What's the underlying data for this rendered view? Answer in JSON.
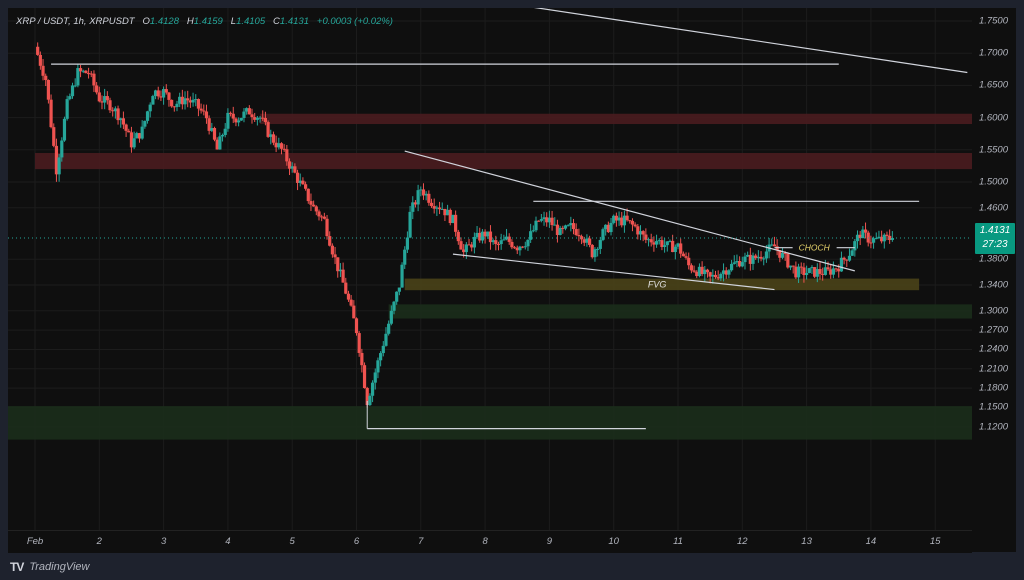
{
  "header": {
    "symbol": "XRP / USDT, 1h, XRPUSDT",
    "open_label": "O",
    "open": "1.4128",
    "high_label": "H",
    "high": "1.4159",
    "low_label": "L",
    "low": "1.4105",
    "close_label": "C",
    "close": "1.4131",
    "change": "+0.0003 (+0.02%)"
  },
  "last_price": {
    "price": "1.4131",
    "countdown": "27:23"
  },
  "footer": {
    "brand": "TradingView",
    "logo": "TV"
  },
  "colors": {
    "up": "#26a69a",
    "down": "#ef5350",
    "background": "#0f0f0f",
    "supply_zone": "#4a1c1f",
    "demand_zone": "#1b2e1b",
    "fvg_zone": "#4a4318",
    "lines": "#d1d4dc"
  },
  "chart_data": {
    "type": "candlestick",
    "title": "XRP / USDT, 1h, XRPUSDT",
    "xlabel": "",
    "ylabel": "",
    "ylim": [
      1.1,
      1.77
    ],
    "grid": true,
    "price_ticks": [
      "1.7500",
      "1.7000",
      "1.6500",
      "1.6000",
      "1.5500",
      "1.5000",
      "1.4600",
      "1.3800",
      "1.3400",
      "1.3000",
      "1.2700",
      "1.2400",
      "1.2100",
      "1.1800",
      "1.1500",
      "1.1200"
    ],
    "time_ticks": [
      "Feb",
      "2",
      "3",
      "4",
      "5",
      "6",
      "7",
      "8",
      "9",
      "10",
      "11",
      "12",
      "13",
      "14",
      "15"
    ],
    "close_path": [
      [
        "Feb 1 00:00",
        1.71
      ],
      [
        "Feb 1 04:00",
        1.66
      ],
      [
        "Feb 1 08:00",
        1.52
      ],
      [
        "Feb 1 12:00",
        1.62
      ],
      [
        "Feb 1 16:00",
        1.67
      ],
      [
        "Feb 1 20:00",
        1.67
      ],
      [
        "Feb 2 00:00",
        1.63
      ],
      [
        "Feb 2 04:00",
        1.62
      ],
      [
        "Feb 2 08:00",
        1.6
      ],
      [
        "Feb 2 12:00",
        1.56
      ],
      [
        "Feb 2 16:00",
        1.58
      ],
      [
        "Feb 2 20:00",
        1.64
      ],
      [
        "Feb 3 00:00",
        1.64
      ],
      [
        "Feb 3 04:00",
        1.62
      ],
      [
        "Feb 3 08:00",
        1.63
      ],
      [
        "Feb 3 12:00",
        1.62
      ],
      [
        "Feb 3 16:00",
        1.6
      ],
      [
        "Feb 3 20:00",
        1.55
      ],
      [
        "Feb 4 00:00",
        1.6
      ],
      [
        "Feb 4 04:00",
        1.6
      ],
      [
        "Feb 4 08:00",
        1.61
      ],
      [
        "Feb 4 12:00",
        1.6
      ],
      [
        "Feb 4 16:00",
        1.57
      ],
      [
        "Feb 4 20:00",
        1.55
      ],
      [
        "Feb 5 00:00",
        1.52
      ],
      [
        "Feb 5 04:00",
        1.49
      ],
      [
        "Feb 5 08:00",
        1.46
      ],
      [
        "Feb 5 12:00",
        1.44
      ],
      [
        "Feb 5 16:00",
        1.38
      ],
      [
        "Feb 5 20:00",
        1.33
      ],
      [
        "Feb 6 00:00",
        1.27
      ],
      [
        "Feb 6 04:00",
        1.16
      ],
      [
        "Feb 6 08:00",
        1.22
      ],
      [
        "Feb 6 12:00",
        1.28
      ],
      [
        "Feb 6 16:00",
        1.34
      ],
      [
        "Feb 6 20:00",
        1.45
      ],
      [
        "Feb 7 00:00",
        1.49
      ],
      [
        "Feb 7 04:00",
        1.47
      ],
      [
        "Feb 7 08:00",
        1.46
      ],
      [
        "Feb 7 12:00",
        1.44
      ],
      [
        "Feb 7 16:00",
        1.39
      ],
      [
        "Feb 7 20:00",
        1.41
      ],
      [
        "Feb 8 00:00",
        1.42
      ],
      [
        "Feb 8 04:00",
        1.4
      ],
      [
        "Feb 8 08:00",
        1.41
      ],
      [
        "Feb 8 12:00",
        1.4
      ],
      [
        "Feb 8 16:00",
        1.41
      ],
      [
        "Feb 8 20:00",
        1.44
      ],
      [
        "Feb 9 00:00",
        1.44
      ],
      [
        "Feb 9 04:00",
        1.42
      ],
      [
        "Feb 9 08:00",
        1.43
      ],
      [
        "Feb 9 12:00",
        1.42
      ],
      [
        "Feb 9 16:00",
        1.39
      ],
      [
        "Feb 9 20:00",
        1.42
      ],
      [
        "Feb 10 00:00",
        1.44
      ],
      [
        "Feb 10 04:00",
        1.44
      ],
      [
        "Feb 10 08:00",
        1.43
      ],
      [
        "Feb 10 12:00",
        1.41
      ],
      [
        "Feb 10 16:00",
        1.41
      ],
      [
        "Feb 10 20:00",
        1.4
      ],
      [
        "Feb 11 00:00",
        1.4
      ],
      [
        "Feb 11 04:00",
        1.37
      ],
      [
        "Feb 11 08:00",
        1.36
      ],
      [
        "Feb 11 12:00",
        1.35
      ],
      [
        "Feb 11 16:00",
        1.36
      ],
      [
        "Feb 11 20:00",
        1.37
      ],
      [
        "Feb 12 00:00",
        1.38
      ],
      [
        "Feb 12 04:00",
        1.38
      ],
      [
        "Feb 12 08:00",
        1.39
      ],
      [
        "Feb 12 12:00",
        1.4
      ],
      [
        "Feb 12 16:00",
        1.38
      ],
      [
        "Feb 12 20:00",
        1.36
      ],
      [
        "Feb 13 00:00",
        1.36
      ],
      [
        "Feb 13 04:00",
        1.36
      ],
      [
        "Feb 13 08:00",
        1.36
      ],
      [
        "Feb 13 12:00",
        1.37
      ],
      [
        "Feb 13 16:00",
        1.39
      ],
      [
        "Feb 13 20:00",
        1.42
      ],
      [
        "Feb 14 00:00",
        1.41
      ],
      [
        "Feb 14 04:00",
        1.41
      ],
      [
        "Feb 14 08:00",
        1.4131
      ]
    ],
    "zones": [
      {
        "name": "supply-zone-upper",
        "type": "supply",
        "top": 1.606,
        "bottom": 1.59,
        "from": "Feb 4 12:00",
        "to": "right-edge"
      },
      {
        "name": "supply-zone-lower",
        "type": "supply",
        "top": 1.545,
        "bottom": 1.52,
        "from": "Feb 1 00:00",
        "to": "right-edge"
      },
      {
        "name": "fvg-zone",
        "type": "fvg",
        "label": "FVG",
        "top": 1.35,
        "bottom": 1.332,
        "from": "Feb 6 18:00",
        "to": "Feb 14 18:00"
      },
      {
        "name": "demand-zone-mid",
        "type": "demand",
        "top": 1.31,
        "bottom": 1.288,
        "from": "Feb 6 12:00",
        "to": "right-edge"
      },
      {
        "name": "demand-zone-low",
        "type": "demand",
        "top": 1.152,
        "bottom": 1.1,
        "from": "left-edge",
        "to": "right-edge"
      }
    ],
    "annotations": [
      {
        "type": "hline",
        "name": "high-line",
        "price": 1.683,
        "from": "Feb 1 06:00",
        "to": "Feb 13 12:00"
      },
      {
        "type": "trendline",
        "name": "macro-downtrend-line",
        "from": [
          "Feb 8 12:00",
          1.775
        ],
        "to": [
          "Feb 15 12:00",
          1.67
        ]
      },
      {
        "type": "trendline",
        "name": "wedge-upper-line",
        "from": [
          "Feb 6 18:00",
          1.548
        ],
        "to": [
          "Feb 13 18:00",
          1.362
        ]
      },
      {
        "type": "trendline",
        "name": "wedge-lower-line",
        "from": [
          "Feb 7 12:00",
          1.388
        ],
        "to": [
          "Feb 12 12:00",
          1.333
        ]
      },
      {
        "type": "hline",
        "name": "range-high-line",
        "price": 1.47,
        "from": "Feb 8 18:00",
        "to": "Feb 14 18:00"
      },
      {
        "type": "hline",
        "name": "choch-line",
        "label": "CHOCH",
        "price": 1.398,
        "from": "Feb 12 12:00",
        "to": "Feb 13 18:00"
      },
      {
        "type": "hline",
        "name": "low-line",
        "price": 1.117,
        "from": "Feb 6 04:00",
        "to": "Feb 10 12:00"
      }
    ],
    "last_price": 1.4131
  }
}
